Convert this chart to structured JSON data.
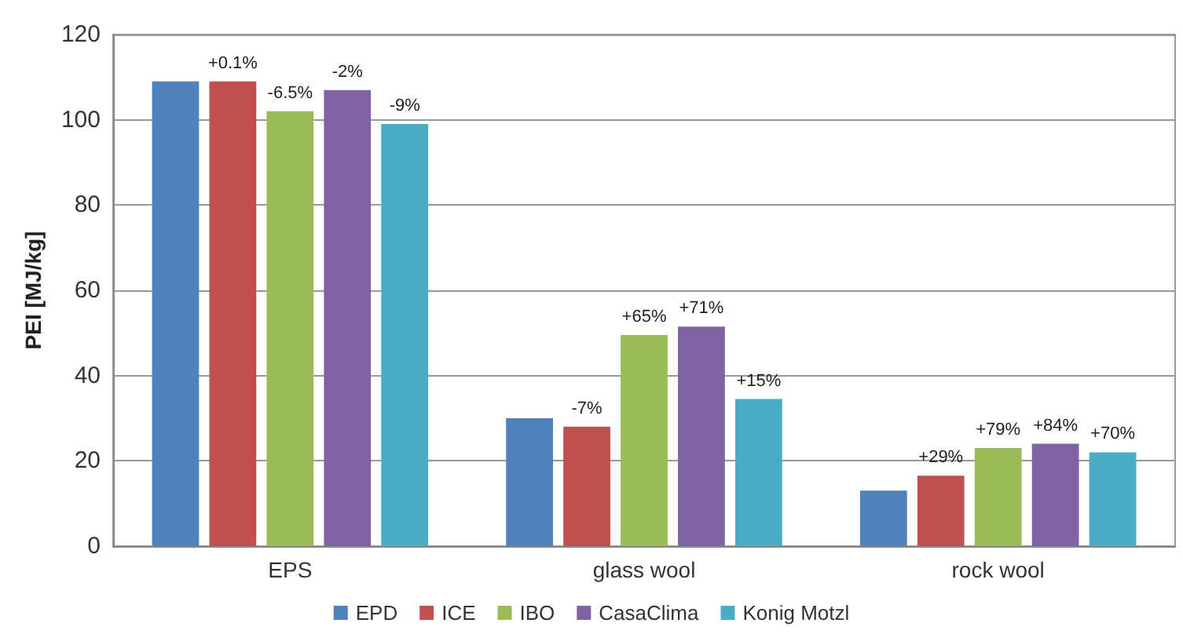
{
  "chart_data": {
    "type": "bar",
    "ylabel": "PEI [MJ/kg]",
    "categories": [
      "EPS",
      "glass wool",
      "rock wool"
    ],
    "series": [
      {
        "name": "EPD",
        "color": "#4f81bd",
        "values": [
          109,
          30,
          13
        ]
      },
      {
        "name": "ICE",
        "color": "#c0504d",
        "values": [
          109,
          28,
          16.5
        ]
      },
      {
        "name": "IBO",
        "color": "#9bbb59",
        "values": [
          102,
          49.5,
          23
        ]
      },
      {
        "name": "CasaClima",
        "color": "#8064a2",
        "values": [
          107,
          51.5,
          24
        ]
      },
      {
        "name": "Konig Motzl",
        "color": "#4bacc6",
        "values": [
          99,
          34.5,
          22
        ]
      }
    ],
    "annotations": [
      "+0.1%",
      "-6.5%",
      "-2%",
      "-9%",
      "-7%",
      "+65%",
      "+71%",
      "+15%",
      "+29%",
      "+79%",
      "+84%",
      "+70%"
    ],
    "ylim": [
      0,
      120
    ],
    "yticks": [
      0,
      20,
      40,
      60,
      80,
      100,
      120
    ],
    "grid": "y",
    "legend": "bottom"
  }
}
